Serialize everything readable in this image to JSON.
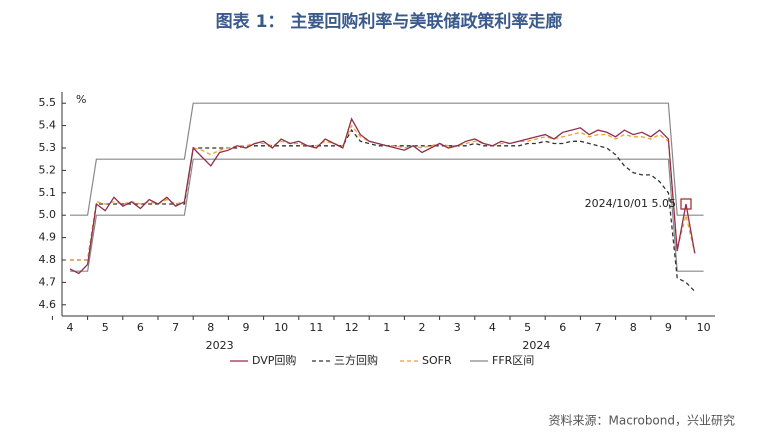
{
  "chart_data": {
    "type": "line",
    "title": "图表 1： 主要回购利率与美联储政策利率走廊",
    "y_unit": "%",
    "source": "资料来源：Macrobond，兴业研究",
    "annotation": "2024/10/01  5.05",
    "categories": [
      "4",
      null,
      null,
      null,
      "5",
      null,
      null,
      null,
      "6",
      null,
      null,
      null,
      "7",
      null,
      null,
      null,
      "8",
      null,
      null,
      null,
      "9",
      null,
      null,
      null,
      "10",
      null,
      null,
      null,
      "11",
      null,
      null,
      null,
      "12",
      null,
      null,
      null,
      "1",
      null,
      null,
      null,
      "2",
      null,
      null,
      null,
      "3",
      null,
      null,
      null,
      "4",
      null,
      null,
      null,
      "5",
      null,
      null,
      null,
      "6",
      null,
      null,
      null,
      "7",
      null,
      null,
      null,
      "8",
      null,
      null,
      null,
      "9",
      null,
      null,
      null,
      "10"
    ],
    "x_group_labels": [
      "2023",
      "2024"
    ],
    "ylim": [
      4.55,
      5.55
    ],
    "yticks": [
      4.6,
      4.7,
      4.8,
      4.9,
      {
        "value": 5,
        "label": "5.0"
      },
      5.1,
      5.2,
      5.3,
      5.4,
      5.5
    ],
    "series": [
      {
        "name": "DVP回购",
        "color": "#8e2f4f",
        "dash": false,
        "values": [
          4.76,
          4.74,
          4.78,
          5.05,
          5.02,
          5.08,
          5.04,
          5.06,
          5.03,
          5.07,
          5.05,
          5.08,
          5.04,
          5.06,
          5.3,
          5.26,
          5.22,
          5.28,
          5.29,
          5.31,
          5.3,
          5.32,
          5.33,
          5.3,
          5.34,
          5.32,
          5.33,
          5.31,
          5.3,
          5.34,
          5.32,
          5.3,
          5.43,
          5.36,
          5.33,
          5.32,
          5.31,
          5.3,
          5.29,
          5.31,
          5.28,
          5.3,
          5.32,
          5.3,
          5.31,
          5.33,
          5.34,
          5.32,
          5.31,
          5.33,
          5.32,
          5.33,
          5.34,
          5.35,
          5.36,
          5.34,
          5.37,
          5.38,
          5.39,
          5.36,
          5.38,
          5.37,
          5.35,
          5.38,
          5.36,
          5.37,
          5.35,
          5.38,
          5.34,
          4.84,
          5.05,
          4.83,
          null
        ]
      },
      {
        "name": "三方回购",
        "color": "#333333",
        "dash": true,
        "values": [
          4.8,
          4.8,
          4.8,
          5.05,
          5.05,
          5.05,
          5.05,
          5.05,
          5.05,
          5.05,
          5.05,
          5.05,
          5.05,
          5.05,
          5.3,
          5.3,
          5.3,
          5.3,
          5.3,
          5.3,
          5.31,
          5.31,
          5.31,
          5.31,
          5.31,
          5.31,
          5.31,
          5.31,
          5.31,
          5.31,
          5.31,
          5.31,
          5.38,
          5.33,
          5.32,
          5.31,
          5.31,
          5.31,
          5.31,
          5.31,
          5.31,
          5.31,
          5.31,
          5.31,
          5.31,
          5.31,
          5.32,
          5.31,
          5.31,
          5.31,
          5.31,
          5.31,
          5.32,
          5.32,
          5.33,
          5.32,
          5.32,
          5.33,
          5.33,
          5.32,
          5.31,
          5.3,
          5.27,
          5.22,
          5.19,
          5.18,
          5.18,
          5.15,
          5.1,
          4.72,
          4.7,
          4.66,
          null
        ]
      },
      {
        "name": "SOFR",
        "color": "#f0a030",
        "dash": true,
        "values": [
          4.8,
          4.8,
          4.8,
          5.06,
          5.05,
          5.06,
          5.05,
          5.06,
          5.05,
          5.06,
          5.05,
          5.07,
          5.05,
          5.06,
          5.3,
          5.29,
          5.27,
          5.29,
          5.3,
          5.31,
          5.31,
          5.32,
          5.32,
          5.31,
          5.33,
          5.32,
          5.32,
          5.31,
          5.31,
          5.33,
          5.32,
          5.31,
          5.4,
          5.35,
          5.33,
          5.32,
          5.31,
          5.31,
          5.3,
          5.31,
          5.3,
          5.31,
          5.32,
          5.31,
          5.31,
          5.32,
          5.33,
          5.32,
          5.31,
          5.32,
          5.32,
          5.33,
          5.33,
          5.34,
          5.35,
          5.34,
          5.35,
          5.36,
          5.37,
          5.35,
          5.36,
          5.36,
          5.34,
          5.36,
          5.35,
          5.35,
          5.34,
          5.36,
          5.33,
          4.85,
          5.0,
          4.83,
          null
        ]
      },
      {
        "name": "FFR区间",
        "color": "#888888",
        "dash": false,
        "values": [
          4.75,
          4.75,
          4.75,
          5.0,
          5.0,
          5.0,
          5.0,
          5.0,
          5.0,
          5.0,
          5.0,
          5.0,
          5.0,
          5.0,
          5.25,
          5.25,
          5.25,
          5.25,
          5.25,
          5.25,
          5.25,
          5.25,
          5.25,
          5.25,
          5.25,
          5.25,
          5.25,
          5.25,
          5.25,
          5.25,
          5.25,
          5.25,
          5.25,
          5.25,
          5.25,
          5.25,
          5.25,
          5.25,
          5.25,
          5.25,
          5.25,
          5.25,
          5.25,
          5.25,
          5.25,
          5.25,
          5.25,
          5.25,
          5.25,
          5.25,
          5.25,
          5.25,
          5.25,
          5.25,
          5.25,
          5.25,
          5.25,
          5.25,
          5.25,
          5.25,
          5.25,
          5.25,
          5.25,
          5.25,
          5.25,
          5.25,
          5.25,
          5.25,
          5.25,
          4.75,
          4.75,
          4.75,
          4.75
        ],
        "upper": [
          5.0,
          5.0,
          5.0,
          5.25,
          5.25,
          5.25,
          5.25,
          5.25,
          5.25,
          5.25,
          5.25,
          5.25,
          5.25,
          5.25,
          5.5,
          5.5,
          5.5,
          5.5,
          5.5,
          5.5,
          5.5,
          5.5,
          5.5,
          5.5,
          5.5,
          5.5,
          5.5,
          5.5,
          5.5,
          5.5,
          5.5,
          5.5,
          5.5,
          5.5,
          5.5,
          5.5,
          5.5,
          5.5,
          5.5,
          5.5,
          5.5,
          5.5,
          5.5,
          5.5,
          5.5,
          5.5,
          5.5,
          5.5,
          5.5,
          5.5,
          5.5,
          5.5,
          5.5,
          5.5,
          5.5,
          5.5,
          5.5,
          5.5,
          5.5,
          5.5,
          5.5,
          5.5,
          5.5,
          5.5,
          5.5,
          5.5,
          5.5,
          5.5,
          5.5,
          5.0,
          5.0,
          5.0,
          5.0
        ]
      }
    ]
  }
}
